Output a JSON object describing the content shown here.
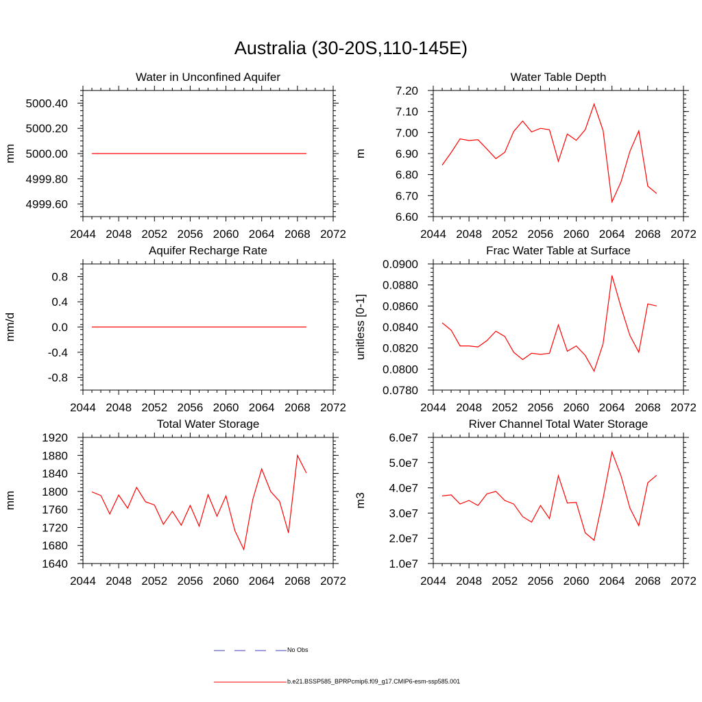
{
  "page_title": "Australia (30-20S,110-145E)",
  "colors": {
    "series": "#ff0000",
    "obs": "#3b3bbf",
    "axis": "#000000"
  },
  "legend": {
    "obs_label": "No Obs",
    "model_label": "b.e21.BSSP585_BPRPcmip6.f09_g17.CMIP6-esm-ssp585.001"
  },
  "chart_data": [
    {
      "type": "line",
      "title": "Water in Unconfined Aquifer",
      "ylabel": "mm",
      "xlim": [
        2044,
        2072
      ],
      "ylim": [
        4999.5,
        5000.5
      ],
      "xticks": [
        "2044",
        "2048",
        "2052",
        "2056",
        "2060",
        "2064",
        "2068",
        "2072"
      ],
      "yticks": [
        4999.6,
        4999.8,
        5000.0,
        5000.2,
        5000.4
      ],
      "ytick_labels": [
        "4999.60",
        "4999.80",
        "5000.00",
        "5000.20",
        "5000.40"
      ],
      "x": [
        2045,
        2069
      ],
      "y": [
        5000.0,
        5000.0
      ]
    },
    {
      "type": "line",
      "title": "Water Table Depth",
      "ylabel": "m",
      "xlim": [
        2044,
        2072
      ],
      "ylim": [
        6.6,
        7.2
      ],
      "xticks": [
        "2044",
        "2048",
        "2052",
        "2056",
        "2060",
        "2064",
        "2068",
        "2072"
      ],
      "yticks": [
        6.6,
        6.7,
        6.8,
        6.9,
        7.0,
        7.1,
        7.2
      ],
      "ytick_labels": [
        "6.60",
        "6.70",
        "6.80",
        "6.90",
        "7.00",
        "7.10",
        "7.20"
      ],
      "x": [
        2045,
        2046,
        2047,
        2048,
        2049,
        2050,
        2051,
        2052,
        2053,
        2054,
        2055,
        2056,
        2057,
        2058,
        2059,
        2060,
        2061,
        2062,
        2063,
        2064,
        2065,
        2066,
        2067,
        2068,
        2069
      ],
      "y": [
        6.845,
        6.905,
        6.97,
        6.962,
        6.966,
        6.922,
        6.876,
        6.906,
        7.005,
        7.055,
        7.003,
        7.02,
        7.013,
        6.863,
        6.993,
        6.963,
        7.013,
        7.135,
        7.01,
        6.67,
        6.765,
        6.91,
        7.008,
        6.745,
        6.71
      ]
    },
    {
      "type": "line",
      "title": "Aquifer Recharge Rate",
      "ylabel": "mm/d",
      "xlim": [
        2044,
        2072
      ],
      "ylim": [
        -1.0,
        1.0
      ],
      "xticks": [
        "2044",
        "2048",
        "2052",
        "2056",
        "2060",
        "2064",
        "2068",
        "2072"
      ],
      "yticks": [
        -0.8,
        -0.4,
        0.0,
        0.4,
        0.8
      ],
      "ytick_labels": [
        "-0.8",
        "-0.4",
        "0.0",
        "0.4",
        "0.8"
      ],
      "x": [
        2045,
        2069
      ],
      "y": [
        0.0,
        0.0
      ]
    },
    {
      "type": "line",
      "title": "Frac Water Table at Surface",
      "ylabel": "unitless [0-1]",
      "xlim": [
        2044,
        2072
      ],
      "ylim": [
        0.078,
        0.09
      ],
      "xticks": [
        "2044",
        "2048",
        "2052",
        "2056",
        "2060",
        "2064",
        "2068",
        "2072"
      ],
      "yticks": [
        0.078,
        0.08,
        0.082,
        0.084,
        0.086,
        0.088,
        0.09
      ],
      "ytick_labels": [
        "0.0780",
        "0.0800",
        "0.0820",
        "0.0840",
        "0.0860",
        "0.0880",
        "0.0900"
      ],
      "x": [
        2045,
        2046,
        2047,
        2048,
        2049,
        2050,
        2051,
        2052,
        2053,
        2054,
        2055,
        2056,
        2057,
        2058,
        2059,
        2060,
        2061,
        2062,
        2063,
        2064,
        2065,
        2066,
        2067,
        2068,
        2069
      ],
      "y": [
        0.0844,
        0.0837,
        0.0822,
        0.0822,
        0.0821,
        0.0827,
        0.0836,
        0.0831,
        0.0816,
        0.0809,
        0.0815,
        0.0814,
        0.0815,
        0.0842,
        0.0817,
        0.0822,
        0.0813,
        0.0798,
        0.0824,
        0.0889,
        0.0859,
        0.0832,
        0.0816,
        0.0862,
        0.086
      ]
    },
    {
      "type": "line",
      "title": "Total Water Storage",
      "ylabel": "mm",
      "xlim": [
        2044,
        2072
      ],
      "ylim": [
        1640,
        1920
      ],
      "xticks": [
        "2044",
        "2048",
        "2052",
        "2056",
        "2060",
        "2064",
        "2068",
        "2072"
      ],
      "yticks": [
        1640,
        1680,
        1720,
        1760,
        1800,
        1840,
        1880,
        1920
      ],
      "ytick_labels": [
        "1640",
        "1680",
        "1720",
        "1760",
        "1800",
        "1840",
        "1880",
        "1920"
      ],
      "x": [
        2045,
        2046,
        2047,
        2048,
        2049,
        2050,
        2051,
        2052,
        2053,
        2054,
        2055,
        2056,
        2057,
        2058,
        2059,
        2060,
        2061,
        2062,
        2063,
        2064,
        2065,
        2066,
        2067,
        2068,
        2069
      ],
      "y": [
        1799,
        1791,
        1750,
        1792,
        1763,
        1809,
        1777,
        1770,
        1727,
        1756,
        1725,
        1769,
        1723,
        1793,
        1745,
        1790,
        1713,
        1671,
        1782,
        1850,
        1800,
        1778,
        1708,
        1880,
        1841
      ]
    },
    {
      "type": "line",
      "title": "River Channel Total Water Storage",
      "ylabel": "m3",
      "xlim": [
        2044,
        2072
      ],
      "ylim": [
        10000000,
        60000000
      ],
      "xticks": [
        "2044",
        "2048",
        "2052",
        "2056",
        "2060",
        "2064",
        "2068",
        "2072"
      ],
      "yticks": [
        10000000,
        20000000,
        30000000,
        40000000,
        50000000,
        60000000
      ],
      "ytick_labels": [
        "1.0e7",
        "2.0e7",
        "3.0e7",
        "4.0e7",
        "5.0e7",
        "6.0e7"
      ],
      "x": [
        2045,
        2046,
        2047,
        2048,
        2049,
        2050,
        2051,
        2052,
        2053,
        2054,
        2055,
        2056,
        2057,
        2058,
        2059,
        2060,
        2061,
        2062,
        2063,
        2064,
        2065,
        2066,
        2067,
        2068,
        2069
      ],
      "y": [
        36800000,
        37200000,
        33600000,
        35000000,
        33000000,
        37600000,
        38600000,
        35000000,
        33600000,
        28600000,
        26400000,
        33000000,
        27800000,
        44800000,
        34000000,
        34200000,
        22200000,
        19200000,
        35800000,
        54200000,
        44800000,
        32000000,
        25000000,
        42000000,
        45000000
      ]
    }
  ]
}
